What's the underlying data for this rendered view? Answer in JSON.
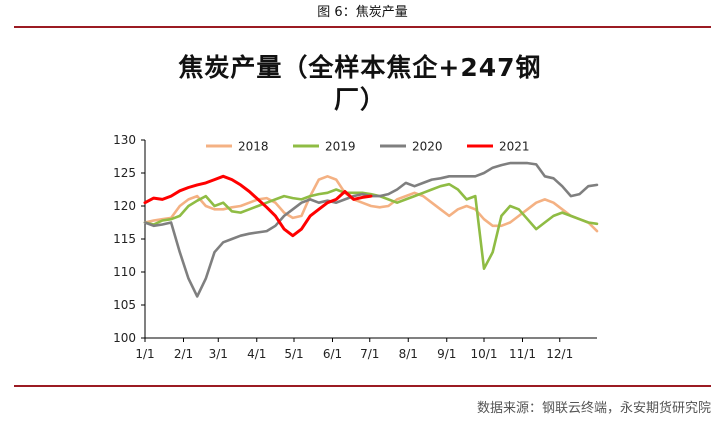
{
  "figure_caption": "图 6：焦炭产量",
  "source": "数据来源：钢联云终端，永安期货研究院",
  "colors": {
    "rule": "#9b1b23",
    "series_2018": "#f4b183",
    "series_2019": "#8fbc44",
    "series_2020": "#7f7f7f",
    "series_2021": "#ff0000"
  },
  "chart_data": {
    "type": "line",
    "title": "焦炭产量（全样本焦企+247钢厂）",
    "title_lines": [
      "焦炭产量（全样本焦企+247钢",
      "厂）"
    ],
    "xlabel": "",
    "ylabel": "",
    "x_ticks": [
      "1/1",
      "2/1",
      "3/1",
      "4/1",
      "5/1",
      "6/1",
      "7/1",
      "8/1",
      "9/1",
      "10/1",
      "11/1",
      "12/1"
    ],
    "xlim_days": [
      1,
      365
    ],
    "ylim": [
      100,
      130
    ],
    "y_ticks": [
      100,
      105,
      110,
      115,
      120,
      125,
      130
    ],
    "grid": false,
    "legend_position": "top",
    "series": [
      {
        "name": "2018",
        "color": "#f4b183",
        "days": [
          1,
          8,
          15,
          22,
          29,
          36,
          43,
          50,
          57,
          64,
          71,
          78,
          85,
          92,
          99,
          106,
          113,
          120,
          127,
          134,
          141,
          148,
          155,
          162,
          169,
          176,
          183,
          190,
          197,
          204,
          211,
          218,
          225,
          232,
          239,
          246,
          253,
          260,
          267,
          274,
          281,
          288,
          295,
          302,
          309,
          316,
          323,
          330,
          337,
          344,
          351,
          358,
          365
        ],
        "values": [
          117.5,
          117.8,
          118.0,
          118.2,
          120.0,
          121.0,
          121.5,
          120.0,
          119.5,
          119.5,
          119.8,
          120.0,
          120.5,
          121.0,
          121.2,
          120.5,
          119.0,
          118.2,
          118.5,
          121.5,
          124.0,
          124.5,
          124.0,
          122.0,
          121.0,
          120.5,
          120.0,
          119.8,
          120.0,
          121.0,
          121.5,
          122.0,
          121.5,
          120.5,
          119.5,
          118.5,
          119.5,
          120.0,
          119.5,
          118.0,
          117.0,
          117.0,
          117.5,
          118.5,
          119.5,
          120.5,
          121.0,
          120.5,
          119.5,
          118.5,
          118.0,
          117.5,
          116.2
        ]
      },
      {
        "name": "2019",
        "color": "#8fbc44",
        "days": [
          1,
          8,
          15,
          22,
          29,
          36,
          43,
          50,
          57,
          64,
          71,
          78,
          85,
          92,
          99,
          106,
          113,
          120,
          127,
          134,
          141,
          148,
          155,
          162,
          169,
          176,
          183,
          190,
          197,
          204,
          211,
          218,
          225,
          232,
          239,
          246,
          253,
          260,
          267,
          274,
          281,
          288,
          295,
          302,
          309,
          316,
          323,
          330,
          337,
          344,
          351,
          358,
          365
        ],
        "values": [
          117.5,
          117.2,
          117.8,
          118.0,
          118.5,
          120.0,
          120.8,
          121.5,
          120.0,
          120.5,
          119.2,
          119.0,
          119.5,
          120.0,
          120.5,
          121.0,
          121.5,
          121.2,
          121.0,
          121.5,
          121.8,
          122.0,
          122.5,
          122.0,
          122.0,
          122.0,
          121.8,
          121.5,
          121.0,
          120.5,
          121.0,
          121.5,
          122.0,
          122.5,
          123.0,
          123.3,
          122.5,
          121.0,
          121.5,
          110.5,
          113.0,
          118.5,
          120.0,
          119.5,
          118.0,
          116.5,
          117.5,
          118.5,
          119.0,
          118.5,
          118.0,
          117.5,
          117.3
        ]
      },
      {
        "name": "2020",
        "color": "#7f7f7f",
        "days": [
          1,
          8,
          15,
          22,
          29,
          36,
          43,
          50,
          57,
          64,
          71,
          78,
          85,
          92,
          99,
          106,
          113,
          120,
          127,
          134,
          141,
          148,
          155,
          162,
          169,
          176,
          183,
          190,
          197,
          204,
          211,
          218,
          225,
          232,
          239,
          246,
          253,
          260,
          267,
          274,
          281,
          288,
          295,
          302,
          309,
          316,
          323,
          330,
          337,
          344,
          351,
          358,
          365
        ],
        "values": [
          117.5,
          117.0,
          117.2,
          117.5,
          113.0,
          109.0,
          106.3,
          109.0,
          113.0,
          114.5,
          115.0,
          115.5,
          115.8,
          116.0,
          116.2,
          117.0,
          118.5,
          119.5,
          120.5,
          121.0,
          120.5,
          120.8,
          120.5,
          121.0,
          121.5,
          121.8,
          121.5,
          121.5,
          121.8,
          122.5,
          123.5,
          123.0,
          123.5,
          124.0,
          124.2,
          124.5,
          124.5,
          124.5,
          124.5,
          125.0,
          125.8,
          126.2,
          126.5,
          126.5,
          126.5,
          126.3,
          124.5,
          124.2,
          123.0,
          121.5,
          121.8,
          123.0,
          123.2
        ]
      },
      {
        "name": "2021",
        "color": "#ff0000",
        "days": [
          1,
          8,
          15,
          22,
          29,
          36,
          43,
          50,
          57,
          64,
          71,
          78,
          85,
          92,
          99,
          106,
          113,
          120,
          127,
          134,
          141,
          148,
          155,
          162,
          169,
          176,
          183
        ],
        "values": [
          120.5,
          121.2,
          121.0,
          121.5,
          122.3,
          122.8,
          123.2,
          123.5,
          124.0,
          124.5,
          124.0,
          123.2,
          122.2,
          121.0,
          119.8,
          118.5,
          116.5,
          115.5,
          116.5,
          118.5,
          119.5,
          120.5,
          121.0,
          122.2,
          121.0,
          121.3,
          121.5
        ]
      }
    ]
  }
}
